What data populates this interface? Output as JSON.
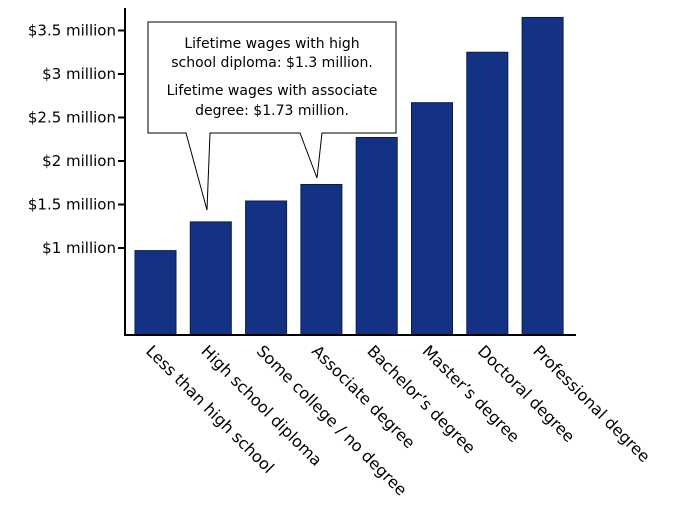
{
  "chart_data": {
    "type": "bar",
    "title": "",
    "xlabel": "",
    "ylabel": "",
    "categories": [
      "Less than high school",
      "High school diploma",
      "Some college / no degree",
      "Associate degree",
      "Bachelor’s degree",
      "Master’s degree",
      "Doctoral degree",
      "Professional degree"
    ],
    "values": [
      0.97,
      1.3,
      1.54,
      1.73,
      2.27,
      2.67,
      3.25,
      3.65
    ],
    "value_unit": "million dollars",
    "ylim": [
      0,
      3.9
    ],
    "y_ticks": [
      {
        "value": 1.0,
        "label": "$1 million"
      },
      {
        "value": 1.5,
        "label": "$1.5 million"
      },
      {
        "value": 2.0,
        "label": "$2 million"
      },
      {
        "value": 2.5,
        "label": "$2.5 million"
      },
      {
        "value": 3.0,
        "label": "$3 million"
      },
      {
        "value": 3.5,
        "label": "$3.5 million"
      }
    ],
    "grid": false,
    "bar_color": "#143284",
    "annotations": {
      "lines": [
        "Lifetime wages with high",
        "school diploma: $1.3 million.",
        "Lifetime wages with associate",
        "degree: $1.73 million."
      ],
      "pointer_targets": [
        "High school diploma",
        "Associate degree"
      ]
    }
  }
}
